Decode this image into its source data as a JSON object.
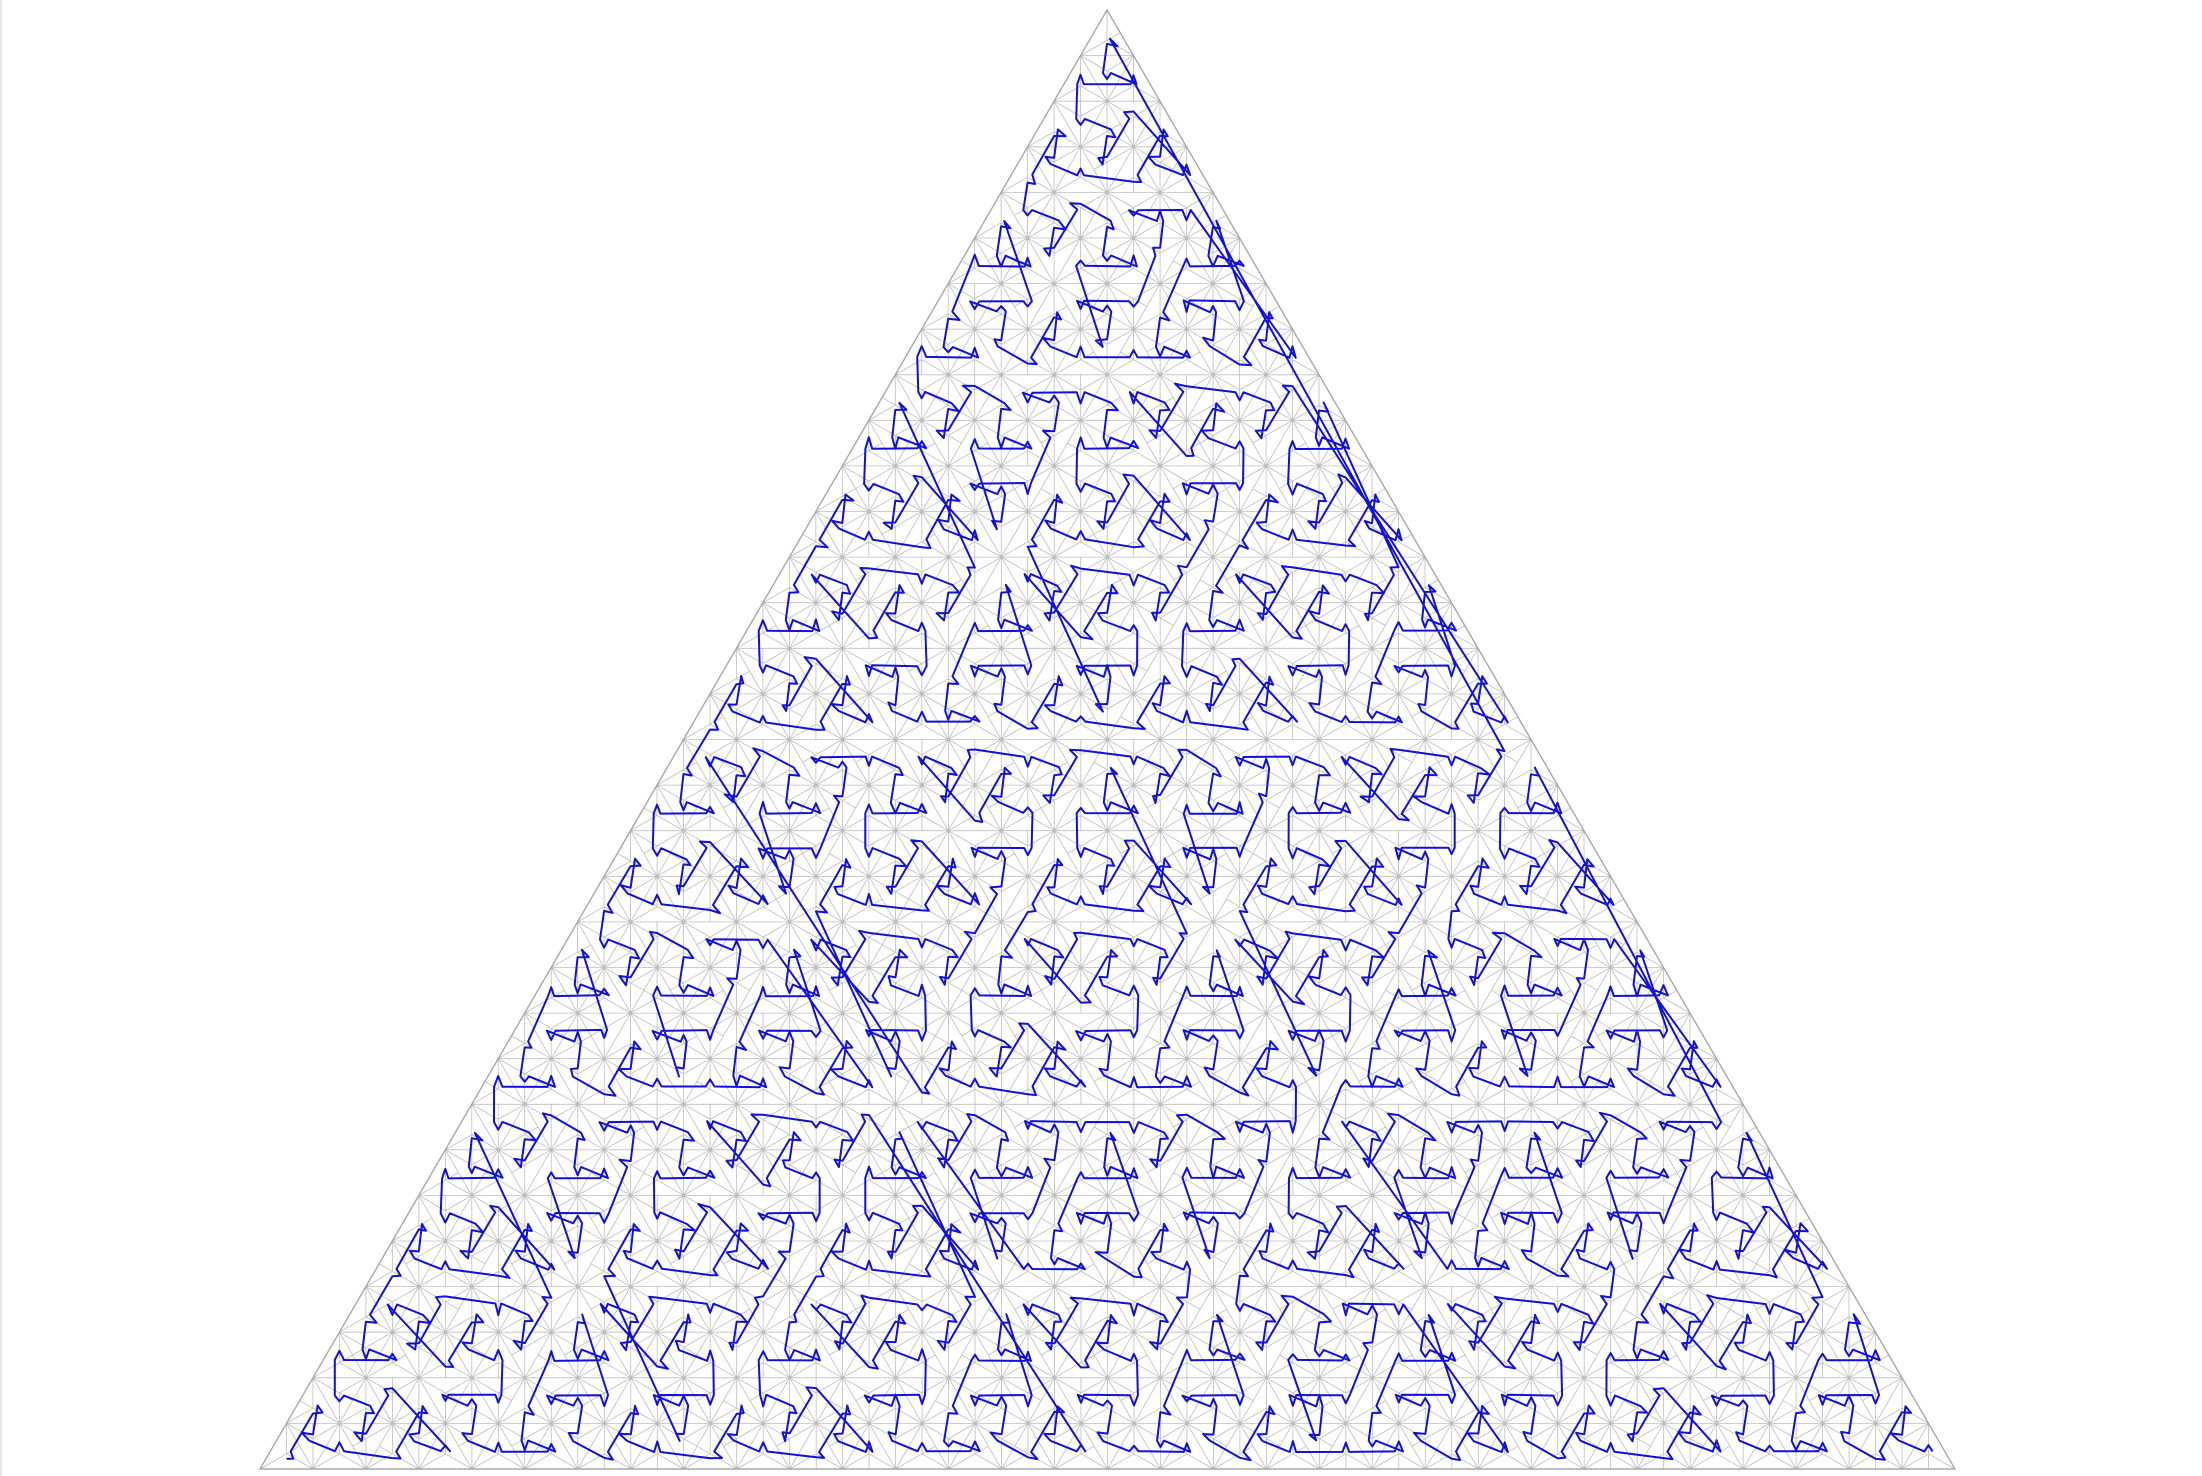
{
  "diagram": {
    "kind": "triangular-space-filling-curve",
    "subdivision_levels": 5,
    "colors": {
      "background": "#ffffff",
      "grid": "#bdbdbd",
      "outline": "#a8a8a8",
      "curve": "#1010d8"
    }
  }
}
